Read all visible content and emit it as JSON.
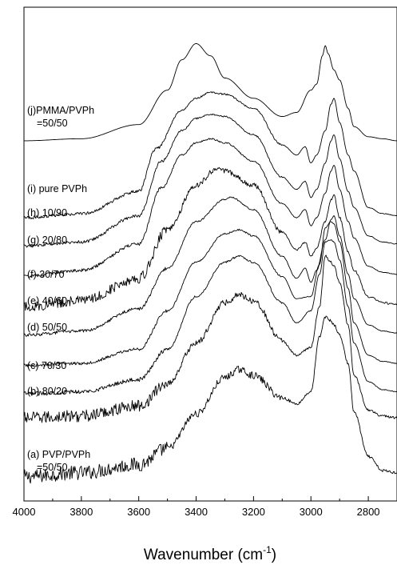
{
  "chart_data": {
    "type": "line",
    "title": "",
    "xlabel": "Wavenumber (cm",
    "xlabel_superscript": "-1",
    "xlabel_close": ")",
    "ylabel": "",
    "xlim": [
      4000,
      2700
    ],
    "x_reversed": true,
    "x_ticks": [
      4000,
      3800,
      3600,
      3400,
      3200,
      3000,
      2800
    ],
    "y_axis_visible": false,
    "grid": false,
    "legend": "none",
    "stacked_offset_spectra": true,
    "series": [
      {
        "name": "(a) PVP/PVPh",
        "name_line2": "=50/50",
        "noise": 0.7,
        "baseline": 0.0,
        "x": [
          4000,
          3800,
          3600,
          3500,
          3400,
          3300,
          3250,
          3200,
          3100,
          3050,
          3000,
          2970,
          2950,
          2930,
          2920,
          2900,
          2870,
          2850,
          2800,
          2750,
          2700
        ],
        "y": [
          0.0,
          0.2,
          0.6,
          1.4,
          3.1,
          4.9,
          5.3,
          5.0,
          3.9,
          3.6,
          4.2,
          6.9,
          7.9,
          7.7,
          7.5,
          7.0,
          5.6,
          3.2,
          1.0,
          0.3,
          0.2
        ]
      },
      {
        "name": "(b) 80/20",
        "noise": 0.6,
        "baseline": 2.9,
        "x": [
          4000,
          3800,
          3600,
          3500,
          3400,
          3300,
          3250,
          3200,
          3100,
          3050,
          3000,
          2970,
          2950,
          2930,
          2920,
          2900,
          2870,
          2850,
          2800,
          2750,
          2700
        ],
        "y": [
          2.9,
          3.0,
          3.5,
          4.6,
          6.6,
          8.6,
          9.0,
          8.7,
          6.7,
          6.0,
          6.4,
          8.4,
          10.9,
          10.6,
          10.4,
          9.6,
          7.5,
          5.0,
          3.3,
          3.0,
          2.9
        ]
      },
      {
        "name": "(c) 70/30",
        "noise": 0.2,
        "baseline": 4.1,
        "x": [
          4000,
          3800,
          3600,
          3500,
          3400,
          3300,
          3250,
          3200,
          3100,
          3050,
          3000,
          2970,
          2950,
          2930,
          2920,
          2900,
          2870,
          2850,
          2800,
          2750,
          2700
        ],
        "y": [
          4.1,
          4.2,
          4.8,
          6.3,
          8.9,
          10.6,
          10.9,
          10.6,
          8.6,
          7.6,
          8.2,
          10.0,
          11.6,
          11.7,
          11.6,
          10.7,
          8.4,
          6.6,
          4.7,
          4.3,
          4.2
        ]
      },
      {
        "name": "(d) 50/50",
        "noise": 0.15,
        "baseline": 5.5,
        "x": [
          4000,
          3800,
          3600,
          3500,
          3400,
          3300,
          3250,
          3200,
          3100,
          3050,
          3000,
          2970,
          2950,
          2930,
          2920,
          2900,
          2870,
          2850,
          2800,
          2750,
          2700
        ],
        "y": [
          5.5,
          5.6,
          6.3,
          8.2,
          10.6,
          12.0,
          12.2,
          11.9,
          9.9,
          8.8,
          8.9,
          10.5,
          12.3,
          12.6,
          12.5,
          11.6,
          9.3,
          7.6,
          6.0,
          5.7,
          5.6
        ]
      },
      {
        "name": "(e) 40/60",
        "noise": 0.15,
        "baseline": 7.0,
        "x": [
          4000,
          3800,
          3600,
          3500,
          3400,
          3300,
          3280,
          3200,
          3100,
          3050,
          3020,
          3000,
          2980,
          2950,
          2930,
          2920,
          2900,
          2870,
          2850,
          2800,
          2750,
          2700
        ],
        "y": [
          7.0,
          7.2,
          8.3,
          10.3,
          12.6,
          13.7,
          13.8,
          13.2,
          10.9,
          9.8,
          10.3,
          9.6,
          10.2,
          11.7,
          12.7,
          12.9,
          11.9,
          10.0,
          8.8,
          7.5,
          7.2,
          7.1
        ]
      },
      {
        "name": "(f) 30/70",
        "noise": 0.5,
        "baseline": 8.4,
        "x": [
          4000,
          3800,
          3600,
          3500,
          3400,
          3330,
          3300,
          3200,
          3100,
          3050,
          3020,
          3000,
          2980,
          2950,
          2930,
          2920,
          2900,
          2870,
          2850,
          2800,
          2750,
          2700
        ],
        "y": [
          8.4,
          8.7,
          9.8,
          12.2,
          14.4,
          15.2,
          15.1,
          14.4,
          12.1,
          11.2,
          11.6,
          10.9,
          11.3,
          12.6,
          13.7,
          13.9,
          12.8,
          11.1,
          10.2,
          8.9,
          8.6,
          8.5
        ]
      },
      {
        "name": "(g) 20/80",
        "noise": 0.15,
        "baseline": 9.9,
        "x": [
          4000,
          3800,
          3600,
          3520,
          3450,
          3400,
          3350,
          3300,
          3200,
          3100,
          3050,
          3020,
          3000,
          2980,
          2950,
          2930,
          2920,
          2900,
          2870,
          2850,
          2800,
          2750,
          2700
        ],
        "y": [
          9.9,
          10.2,
          11.5,
          14.3,
          15.9,
          16.5,
          16.7,
          16.5,
          15.6,
          13.5,
          12.8,
          13.2,
          12.4,
          12.8,
          14.0,
          15.1,
          15.4,
          14.2,
          12.6,
          11.8,
          10.4,
          10.1,
          10.0
        ]
      },
      {
        "name": "(h) 10/90",
        "noise": 0.15,
        "baseline": 11.4,
        "x": [
          4000,
          3800,
          3600,
          3520,
          3450,
          3400,
          3350,
          3300,
          3200,
          3100,
          3050,
          3020,
          3000,
          2980,
          2950,
          2930,
          2920,
          2900,
          2870,
          2850,
          2800,
          2750,
          2700
        ],
        "y": [
          11.4,
          11.6,
          12.9,
          15.6,
          17.1,
          17.7,
          17.9,
          17.8,
          16.9,
          14.8,
          14.2,
          14.6,
          13.8,
          14.2,
          15.5,
          16.6,
          16.9,
          15.7,
          14.1,
          13.3,
          11.9,
          11.6,
          11.5
        ]
      },
      {
        "name": "(i) pure PVPh",
        "noise": 0.15,
        "baseline": 12.8,
        "x": [
          4000,
          3800,
          3600,
          3540,
          3450,
          3400,
          3350,
          3300,
          3200,
          3100,
          3050,
          3020,
          3000,
          2980,
          2950,
          2930,
          2920,
          2900,
          2870,
          2850,
          2800,
          2750,
          2700
        ],
        "y": [
          12.8,
          13.0,
          14.1,
          16.2,
          18.1,
          18.7,
          19.0,
          18.9,
          18.2,
          16.4,
          15.9,
          16.3,
          15.5,
          15.9,
          17.1,
          18.4,
          18.7,
          17.5,
          15.9,
          15.1,
          13.3,
          13.0,
          12.9
        ]
      },
      {
        "name": "(j)PMMA/PVPh",
        "name_line2": "=50/50",
        "noise": 0.0,
        "baseline": 16.6,
        "x": [
          4000,
          3800,
          3600,
          3500,
          3450,
          3400,
          3350,
          3300,
          3200,
          3100,
          3050,
          3000,
          2980,
          2960,
          2950,
          2940,
          2920,
          2900,
          2870,
          2850,
          2800,
          2750,
          2700
        ],
        "y": [
          16.6,
          16.7,
          17.4,
          19.1,
          20.6,
          21.4,
          20.8,
          19.7,
          18.7,
          17.8,
          18.0,
          19.1,
          19.4,
          20.8,
          21.3,
          20.9,
          20.1,
          19.6,
          18.2,
          17.3,
          16.8,
          16.7,
          16.6
        ]
      }
    ]
  }
}
